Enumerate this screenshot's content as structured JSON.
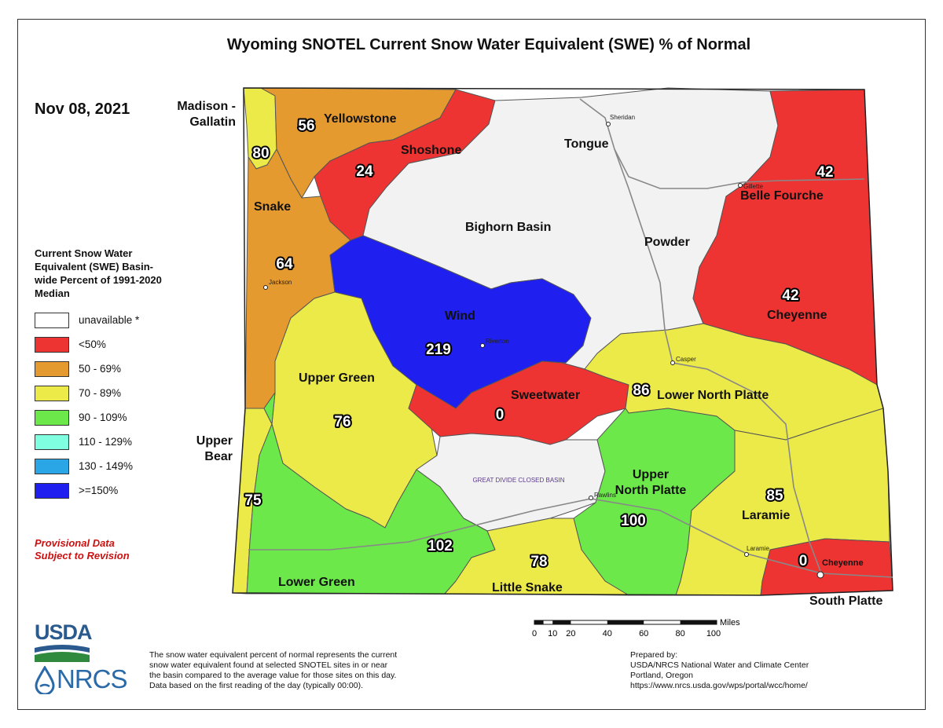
{
  "title": "Wyoming SNOTEL Current Snow Water Equivalent (SWE) % of Normal",
  "date": "Nov 08, 2021",
  "legend": {
    "title": "Current Snow Water Equivalent (SWE) Basin-wide Percent of 1991-2020 Median",
    "items": [
      {
        "label": "unavailable *",
        "color": "#ffffff"
      },
      {
        "label": "<50%",
        "color": "#ee3333"
      },
      {
        "label": "50 - 69%",
        "color": "#e59a30"
      },
      {
        "label": "70 - 89%",
        "color": "#ecea48"
      },
      {
        "label": "90 - 109%",
        "color": "#6de84a"
      },
      {
        "label": "110 - 129%",
        "color": "#7fffe0"
      },
      {
        "label": "130 - 149%",
        "color": "#2aa6e6"
      },
      {
        "label": ">=150%",
        "color": "#1f1ff0"
      }
    ]
  },
  "provisional": {
    "line1": "Provisional Data",
    "line2": "Subject to Revision"
  },
  "basins": [
    {
      "name": "Madison - Gallatin",
      "name_line1": "Madison -",
      "name_line2": "Gallatin",
      "percent": "80",
      "color": "#ecea48"
    },
    {
      "name": "Yellowstone",
      "percent": "56",
      "color": "#e59a30"
    },
    {
      "name": "Shoshone",
      "percent": "24",
      "color": "#ee3333"
    },
    {
      "name": "Snake",
      "percent": "64",
      "color": "#e59a30"
    },
    {
      "name": "Tongue",
      "percent": "",
      "color": "#f2f2f2"
    },
    {
      "name": "Bighorn Basin",
      "percent": "",
      "color": "#f2f2f2"
    },
    {
      "name": "Powder",
      "percent": "",
      "color": "#f2f2f2"
    },
    {
      "name": "Belle Fourche",
      "percent": "42",
      "color": "#ee3333"
    },
    {
      "name": "Cheyenne",
      "percent": "42",
      "color": "#ee3333"
    },
    {
      "name": "Wind",
      "percent": "219",
      "color": "#1f1ff0"
    },
    {
      "name": "Upper Green",
      "percent": "76",
      "color": "#ecea48"
    },
    {
      "name": "Sweetwater",
      "percent": "0",
      "color": "#ee3333"
    },
    {
      "name": "Lower North Platte",
      "percent": "86",
      "color": "#ecea48"
    },
    {
      "name": "Upper Bear",
      "name_line1": "Upper",
      "name_line2": "Bear",
      "percent": "75",
      "color": "#ecea48"
    },
    {
      "name": "Upper North Platte",
      "name_line1": "Upper",
      "name_line2": "North Platte",
      "percent": "100",
      "color": "#6de84a"
    },
    {
      "name": "Laramie",
      "percent": "85",
      "color": "#ecea48"
    },
    {
      "name": "Lower Green",
      "percent": "102",
      "color": "#6de84a"
    },
    {
      "name": "Little Snake",
      "percent": "78",
      "color": "#ecea48"
    },
    {
      "name": "South Platte",
      "percent": "0",
      "color": "#ee3333"
    }
  ],
  "closed_basin_label": "GREAT DIVIDE CLOSED BASIN",
  "cities": [
    "Sheridan",
    "Gillette",
    "Jackson",
    "Riverton",
    "Casper",
    "Rawlins",
    "Laramie",
    "Cheyenne"
  ],
  "scale": {
    "unit": "Miles",
    "ticks": [
      "0",
      "10",
      "20",
      "40",
      "60",
      "80",
      "100"
    ]
  },
  "note": {
    "line1": "The snow water equivalent percent of normal represents the current",
    "line2": "snow water equivalent found at selected SNOTEL sites in or near",
    "line3": "the basin compared to the average value for those sites on this day.",
    "line4": "Data based on the first reading of the day (typically 00:00)."
  },
  "prepared": {
    "line1": "Prepared by:",
    "line2": "USDA/NRCS National Water and Climate Center",
    "line3": "Portland, Oregon",
    "line4": "https://www.nrcs.usda.gov/wps/portal/wcc/home/"
  },
  "logos": {
    "usda": "USDA",
    "nrcs": "NRCS"
  }
}
